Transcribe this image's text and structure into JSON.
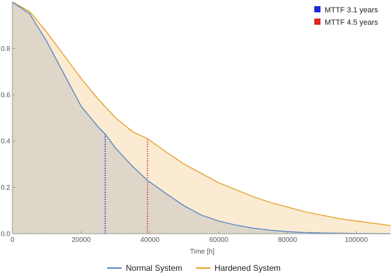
{
  "chart_data": {
    "type": "area",
    "title": "",
    "xlabel": "Time [h]",
    "ylabel": "",
    "xlim": [
      0,
      110000
    ],
    "ylim": [
      0,
      1
    ],
    "x_ticks": [
      0,
      20000,
      40000,
      60000,
      80000,
      100000
    ],
    "x_tick_labels": [
      "0",
      "20000",
      "40000",
      "60000",
      "80000",
      "100000"
    ],
    "y_ticks": [
      0,
      0.2,
      0.4,
      0.6,
      0.8
    ],
    "y_tick_labels": [
      "0.0",
      "0.2",
      "0.4",
      "0.6",
      "0.8"
    ],
    "grid": false,
    "legend_position": "bottom",
    "series": [
      {
        "name": "Normal System",
        "color": "#5b87c2",
        "fill": "#ded6c8",
        "x": [
          0,
          5000,
          10000,
          15000,
          20000,
          25000,
          27000,
          30000,
          35000,
          39300,
          45000,
          50000,
          55000,
          60000,
          65000,
          70000,
          75000,
          80000,
          85000,
          90000,
          95000,
          100000,
          105000,
          110000
        ],
        "y": [
          1.0,
          0.95,
          0.83,
          0.69,
          0.55,
          0.46,
          0.43,
          0.37,
          0.29,
          0.23,
          0.17,
          0.12,
          0.08,
          0.055,
          0.037,
          0.024,
          0.015,
          0.009,
          0.005,
          0.003,
          0.002,
          0.001,
          0.0005,
          0.0003
        ]
      },
      {
        "name": "Hardened System",
        "color": "#e5a12b",
        "fill": "#fbebd2",
        "x": [
          0,
          5000,
          10000,
          15000,
          20000,
          25000,
          30000,
          35000,
          39300,
          45000,
          50000,
          55000,
          60000,
          65000,
          70000,
          75000,
          80000,
          85000,
          90000,
          95000,
          100000,
          105000,
          110000
        ],
        "y": [
          1.0,
          0.96,
          0.87,
          0.77,
          0.67,
          0.58,
          0.5,
          0.44,
          0.41,
          0.35,
          0.3,
          0.26,
          0.22,
          0.19,
          0.16,
          0.135,
          0.115,
          0.095,
          0.08,
          0.065,
          0.055,
          0.045,
          0.035
        ]
      }
    ],
    "markers": [
      {
        "label": "MTTF 3.1 years",
        "x": 27000,
        "y": 0.43,
        "color": "#1f2bd6",
        "line_style": "dotted"
      },
      {
        "label": "MTTF 4.5 years",
        "x": 39300,
        "y": 0.41,
        "color": "#e0261f",
        "line_style": "dotted"
      }
    ]
  }
}
